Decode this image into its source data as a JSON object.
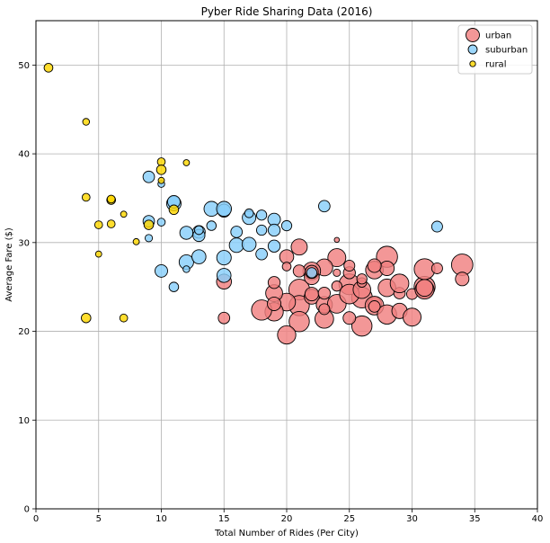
{
  "chart_data": {
    "type": "scatter",
    "title": "Pyber Ride Sharing Data (2016)",
    "xlabel": "Total Number of Rides (Per City)",
    "ylabel": "Average Fare ($)",
    "xlim": [
      0,
      40
    ],
    "ylim": [
      0,
      55
    ],
    "xticks": [
      0,
      5,
      10,
      15,
      20,
      25,
      30,
      35,
      40
    ],
    "yticks": [
      0,
      10,
      20,
      30,
      40,
      50
    ],
    "grid": true,
    "legend_position": "top-right",
    "series": [
      {
        "name": "urban",
        "color": "#f08080",
        "points": [
          [
            34,
            27.5,
            340
          ],
          [
            31,
            25.0,
            330
          ],
          [
            31,
            27.0,
            320
          ],
          [
            28,
            28.4,
            330
          ],
          [
            26,
            20.6,
            300
          ],
          [
            26,
            23.8,
            320
          ],
          [
            25,
            25.3,
            320
          ],
          [
            24,
            28.3,
            230
          ],
          [
            23,
            27.2,
            200
          ],
          [
            22,
            26.8,
            220
          ],
          [
            21,
            29.5,
            180
          ],
          [
            21,
            24.7,
            320
          ],
          [
            21,
            22.9,
            300
          ],
          [
            21,
            21.1,
            300
          ],
          [
            20,
            23.3,
            220
          ],
          [
            20,
            19.6,
            240
          ],
          [
            20,
            28.4,
            130
          ],
          [
            19,
            24.3,
            200
          ],
          [
            19,
            22.2,
            240
          ],
          [
            18,
            22.4,
            300
          ],
          [
            19,
            25.5,
            90
          ],
          [
            15,
            25.6,
            150
          ],
          [
            15,
            21.5,
            80
          ],
          [
            22,
            23.9,
            150
          ],
          [
            22,
            24.2,
            120
          ],
          [
            22,
            26.1,
            150
          ],
          [
            23,
            21.4,
            250
          ],
          [
            23,
            23.0,
            180
          ],
          [
            24,
            23.1,
            250
          ],
          [
            24,
            25.1,
            60
          ],
          [
            24,
            26.6,
            25
          ],
          [
            25,
            21.5,
            100
          ],
          [
            25,
            24.2,
            280
          ],
          [
            25,
            26.6,
            90
          ],
          [
            26,
            24.7,
            220
          ],
          [
            26,
            25.5,
            50
          ],
          [
            27,
            23.1,
            130
          ],
          [
            27,
            26.9,
            220
          ],
          [
            27,
            22.9,
            250
          ],
          [
            28,
            21.9,
            270
          ],
          [
            28,
            24.9,
            220
          ],
          [
            28,
            27.1,
            140
          ],
          [
            29,
            22.3,
            160
          ],
          [
            29,
            24.3,
            80
          ],
          [
            29,
            25.4,
            250
          ],
          [
            30,
            21.6,
            230
          ],
          [
            30,
            24.2,
            70
          ],
          [
            31,
            24.7,
            260
          ],
          [
            31,
            24.9,
            200
          ],
          [
            32,
            27.1,
            70
          ],
          [
            34,
            25.9,
            120
          ],
          [
            21,
            26.8,
            90
          ],
          [
            20,
            27.3,
            40
          ],
          [
            19,
            23.1,
            120
          ],
          [
            22,
            26.7,
            110
          ],
          [
            23,
            22.5,
            70
          ],
          [
            23,
            24.3,
            90
          ],
          [
            26,
            25.9,
            60
          ],
          [
            27,
            22.8,
            80
          ],
          [
            24,
            30.3,
            8
          ],
          [
            27,
            27.4,
            120
          ],
          [
            25,
            27.4,
            70
          ]
        ]
      },
      {
        "name": "suburban",
        "color": "#87cefa",
        "points": [
          [
            9,
            37.4,
            80
          ],
          [
            9,
            32.4,
            80
          ],
          [
            9,
            30.5,
            25
          ],
          [
            10,
            36.6,
            20
          ],
          [
            10,
            32.3,
            30
          ],
          [
            10,
            26.8,
            100
          ],
          [
            11,
            34.4,
            140
          ],
          [
            11,
            34.6,
            100
          ],
          [
            11,
            25.0,
            50
          ],
          [
            12,
            31.1,
            110
          ],
          [
            12,
            27.8,
            140
          ],
          [
            12,
            27.0,
            20
          ],
          [
            13,
            31.2,
            100
          ],
          [
            13,
            30.8,
            90
          ],
          [
            13,
            31.4,
            40
          ],
          [
            13,
            28.4,
            130
          ],
          [
            14,
            33.8,
            150
          ],
          [
            14,
            31.9,
            50
          ],
          [
            15,
            33.6,
            110
          ],
          [
            15,
            33.8,
            150
          ],
          [
            15,
            28.3,
            140
          ],
          [
            15,
            26.3,
            130
          ],
          [
            16,
            31.2,
            80
          ],
          [
            16,
            29.7,
            140
          ],
          [
            17,
            32.8,
            120
          ],
          [
            17,
            33.3,
            40
          ],
          [
            17,
            29.8,
            130
          ],
          [
            18,
            33.1,
            60
          ],
          [
            18,
            31.4,
            60
          ],
          [
            18,
            28.7,
            80
          ],
          [
            19,
            32.6,
            100
          ],
          [
            19,
            31.4,
            90
          ],
          [
            19,
            29.6,
            90
          ],
          [
            20,
            31.9,
            60
          ],
          [
            22,
            26.6,
            60
          ],
          [
            23,
            34.1,
            80
          ],
          [
            32,
            31.8,
            70
          ]
        ]
      },
      {
        "name": "rural",
        "color": "#ffd700",
        "points": [
          [
            1,
            49.7,
            40
          ],
          [
            4,
            43.6,
            20
          ],
          [
            4,
            35.1,
            30
          ],
          [
            4,
            21.5,
            50
          ],
          [
            5,
            32.0,
            30
          ],
          [
            5,
            28.7,
            15
          ],
          [
            6,
            34.8,
            40
          ],
          [
            6,
            34.9,
            30
          ],
          [
            6,
            32.1,
            30
          ],
          [
            7,
            33.2,
            15
          ],
          [
            7,
            21.5,
            30
          ],
          [
            8,
            30.1,
            15
          ],
          [
            9,
            32.0,
            50
          ],
          [
            10,
            39.1,
            30
          ],
          [
            10,
            38.2,
            50
          ],
          [
            10,
            37.0,
            15
          ],
          [
            11,
            33.7,
            50
          ],
          [
            12,
            39.0,
            15
          ]
        ]
      }
    ]
  }
}
